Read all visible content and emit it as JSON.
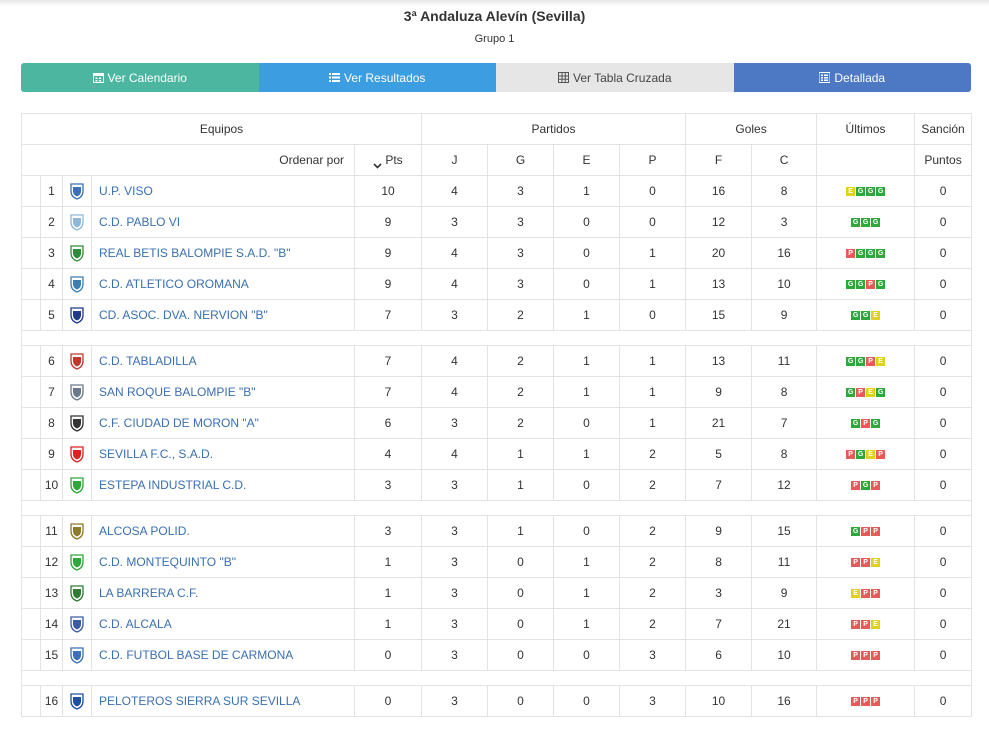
{
  "header": {
    "title": "3ª Andaluza Alevín (Sevilla)",
    "subtitle": "Grupo 1"
  },
  "tabs": [
    {
      "label": "Ver Calendario",
      "icon": "calendar-icon",
      "color": "#4db6a0"
    },
    {
      "label": "Ver Resultados",
      "icon": "list-icon",
      "color": "#3c9de0"
    },
    {
      "label": "Ver Tabla Cruzada",
      "icon": "table-icon",
      "color": "#e6e6e6"
    },
    {
      "label": "Detallada",
      "icon": "detail-list-icon",
      "color": "#4d78c4"
    }
  ],
  "table": {
    "group_headers": {
      "equipos": "Equipos",
      "partidos": "Partidos",
      "goles": "Goles",
      "ultimos": "Últimos",
      "sancion": "Sanción"
    },
    "sub_headers": {
      "order_by": "Ordenar por",
      "pts": "Pts",
      "j": "J",
      "g": "G",
      "e": "E",
      "p": "P",
      "f": "F",
      "c": "C",
      "puntos": "Puntos"
    },
    "form_colors": {
      "G": "#2ea83a",
      "E": "#e0d21a",
      "P": "#e85a5a"
    },
    "rows": [
      {
        "pos": "1",
        "team": "U.P. VISO",
        "pts": "10",
        "j": "4",
        "g": "3",
        "e": "1",
        "p": "0",
        "f": "16",
        "c": "8",
        "last": [
          "E",
          "G",
          "G",
          "G"
        ],
        "sancion": "0"
      },
      {
        "pos": "2",
        "team": "C.D. PABLO VI",
        "pts": "9",
        "j": "3",
        "g": "3",
        "e": "0",
        "p": "0",
        "f": "12",
        "c": "3",
        "last": [
          "G",
          "G",
          "G"
        ],
        "sancion": "0"
      },
      {
        "pos": "3",
        "team": "REAL BETIS BALOMPIE S.A.D. \"B\"",
        "pts": "9",
        "j": "4",
        "g": "3",
        "e": "0",
        "p": "1",
        "f": "20",
        "c": "16",
        "last": [
          "P",
          "G",
          "G",
          "G"
        ],
        "sancion": "0"
      },
      {
        "pos": "4",
        "team": "C.D. ATLETICO OROMANA",
        "pts": "9",
        "j": "4",
        "g": "3",
        "e": "0",
        "p": "1",
        "f": "13",
        "c": "10",
        "last": [
          "G",
          "G",
          "P",
          "G"
        ],
        "sancion": "0"
      },
      {
        "pos": "5",
        "team": "CD. ASOC. DVA. NERVION \"B\"",
        "pts": "7",
        "j": "3",
        "g": "2",
        "e": "1",
        "p": "0",
        "f": "15",
        "c": "9",
        "last": [
          "G",
          "G",
          "E"
        ],
        "sancion": "0"
      },
      {
        "pos": "6",
        "team": "C.D. TABLADILLA",
        "pts": "7",
        "j": "4",
        "g": "2",
        "e": "1",
        "p": "1",
        "f": "13",
        "c": "11",
        "last": [
          "G",
          "G",
          "P",
          "E"
        ],
        "sancion": "0"
      },
      {
        "pos": "7",
        "team": "SAN ROQUE BALOMPIE \"B\"",
        "pts": "7",
        "j": "4",
        "g": "2",
        "e": "1",
        "p": "1",
        "f": "9",
        "c": "8",
        "last": [
          "G",
          "P",
          "E",
          "G"
        ],
        "sancion": "0"
      },
      {
        "pos": "8",
        "team": "C.F. CIUDAD DE MORON \"A\"",
        "pts": "6",
        "j": "3",
        "g": "2",
        "e": "0",
        "p": "1",
        "f": "21",
        "c": "7",
        "last": [
          "G",
          "P",
          "G"
        ],
        "sancion": "0"
      },
      {
        "pos": "9",
        "team": "SEVILLA F.C., S.A.D.",
        "pts": "4",
        "j": "4",
        "g": "1",
        "e": "1",
        "p": "2",
        "f": "5",
        "c": "8",
        "last": [
          "P",
          "G",
          "E",
          "P"
        ],
        "sancion": "0"
      },
      {
        "pos": "10",
        "team": "ESTEPA INDUSTRIAL C.D.",
        "pts": "3",
        "j": "3",
        "g": "1",
        "e": "0",
        "p": "2",
        "f": "7",
        "c": "12",
        "last": [
          "P",
          "G",
          "P"
        ],
        "sancion": "0"
      },
      {
        "pos": "11",
        "team": "ALCOSA POLID.",
        "pts": "3",
        "j": "3",
        "g": "1",
        "e": "0",
        "p": "2",
        "f": "9",
        "c": "15",
        "last": [
          "G",
          "P",
          "P"
        ],
        "sancion": "0"
      },
      {
        "pos": "12",
        "team": "C.D. MONTEQUINTO \"B\"",
        "pts": "1",
        "j": "3",
        "g": "0",
        "e": "1",
        "p": "2",
        "f": "8",
        "c": "11",
        "last": [
          "P",
          "P",
          "E"
        ],
        "sancion": "0"
      },
      {
        "pos": "13",
        "team": "LA BARRERA C.F.",
        "pts": "1",
        "j": "3",
        "g": "0",
        "e": "1",
        "p": "2",
        "f": "3",
        "c": "9",
        "last": [
          "E",
          "P",
          "P"
        ],
        "sancion": "0"
      },
      {
        "pos": "14",
        "team": "C.D. ALCALA",
        "pts": "1",
        "j": "3",
        "g": "0",
        "e": "1",
        "p": "2",
        "f": "7",
        "c": "21",
        "last": [
          "P",
          "P",
          "E"
        ],
        "sancion": "0"
      },
      {
        "pos": "15",
        "team": "C.D. FUTBOL BASE DE CARMONA",
        "pts": "0",
        "j": "3",
        "g": "0",
        "e": "0",
        "p": "3",
        "f": "6",
        "c": "10",
        "last": [
          "P",
          "P",
          "P"
        ],
        "sancion": "0"
      },
      {
        "pos": "16",
        "team": "PELOTEROS SIERRA SUR SEVILLA",
        "pts": "0",
        "j": "3",
        "g": "0",
        "e": "0",
        "p": "3",
        "f": "10",
        "c": "16",
        "last": [
          "P",
          "P",
          "P"
        ],
        "sancion": "0"
      }
    ]
  }
}
